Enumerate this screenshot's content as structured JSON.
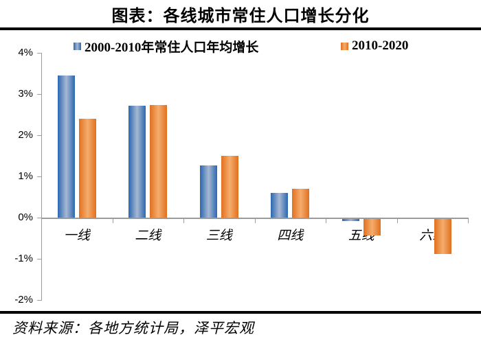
{
  "page": {
    "title": "图表：各线城市常住人口增长分化",
    "source": "资料来源：各地方统计局，泽平宏观"
  },
  "colors": {
    "axis": "#9b9b9b",
    "rule": "#000000",
    "blue_edge": "#2b67b0",
    "blue_mid": "#a6b8d2",
    "orange_edge": "#e1701e",
    "orange_mid": "#f5ad6e"
  },
  "chart_data": {
    "type": "bar",
    "title": "图表：各线城市常住人口增长分化",
    "categories": [
      "一线",
      "二线",
      "三线",
      "四线",
      "五线",
      "六线"
    ],
    "series": [
      {
        "name": "2000-2010年常住人口年均增长",
        "color_edge": "#2b67b0",
        "color_mid": "#a6b8d2",
        "values": [
          3.45,
          2.72,
          1.27,
          0.6,
          -0.05,
          0
        ]
      },
      {
        "name": "2010-2020",
        "color_edge": "#e1701e",
        "color_mid": "#f5ad6e",
        "values": [
          2.4,
          2.73,
          1.5,
          0.7,
          -0.4,
          -0.85
        ]
      }
    ],
    "unit": "%",
    "ylim": [
      -2,
      4
    ],
    "yticks": [
      4,
      3,
      2,
      1,
      0,
      -1,
      -2
    ],
    "ytick_labels": [
      "4%",
      "3%",
      "2%",
      "1%",
      "0%",
      "-1%",
      "-2%"
    ],
    "xlabel": "",
    "ylabel": "",
    "grid": false,
    "legend_position": "top"
  }
}
